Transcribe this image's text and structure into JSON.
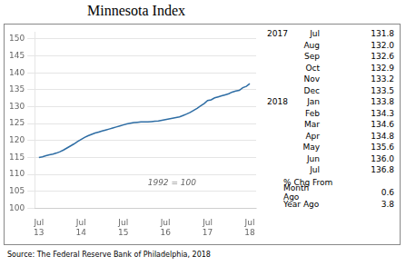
{
  "chart_data": {
    "type": "line",
    "title": "Minnesota Index",
    "subtitle": "1992 = 100",
    "source": "Source: The Federal Reserve Bank of Philadelphia, 2018",
    "color": "#2e6da4",
    "x": [
      2013.5,
      2013.583,
      2013.667,
      2013.75,
      2013.833,
      2013.917,
      2014.0,
      2014.083,
      2014.167,
      2014.25,
      2014.333,
      2014.417,
      2014.5,
      2014.583,
      2014.667,
      2014.75,
      2014.833,
      2014.917,
      2015.0,
      2015.083,
      2015.167,
      2015.25,
      2015.333,
      2015.417,
      2015.5,
      2015.583,
      2015.667,
      2015.75,
      2015.833,
      2015.917,
      2016.0,
      2016.083,
      2016.167,
      2016.25,
      2016.333,
      2016.417,
      2016.5,
      2016.583,
      2016.667,
      2016.75,
      2016.833,
      2016.917,
      2017.0,
      2017.083,
      2017.167,
      2017.25,
      2017.333,
      2017.417,
      2017.5,
      2017.583,
      2017.667,
      2017.75,
      2017.833,
      2017.917,
      2018.0,
      2018.083,
      2018.167,
      2018.25,
      2018.333,
      2018.417,
      2018.5
    ],
    "values": [
      115.0,
      115.2,
      115.5,
      115.8,
      116.0,
      116.3,
      116.7,
      117.2,
      117.8,
      118.4,
      119.0,
      119.7,
      120.3,
      120.9,
      121.4,
      121.8,
      122.2,
      122.5,
      122.8,
      123.1,
      123.4,
      123.7,
      124.0,
      124.3,
      124.6,
      124.9,
      125.1,
      125.3,
      125.4,
      125.5,
      125.5,
      125.5,
      125.6,
      125.7,
      125.8,
      126.0,
      126.2,
      126.4,
      126.6,
      126.8,
      127.0,
      127.4,
      127.8,
      128.3,
      128.9,
      129.5,
      130.2,
      130.9,
      131.8,
      132.0,
      132.6,
      132.9,
      133.2,
      133.5,
      133.8,
      134.3,
      134.6,
      134.8,
      135.6,
      136.0,
      136.8
    ],
    "xlim": [
      2013.4,
      2018.65
    ],
    "xticks": [
      {
        "value": 2013.5,
        "label": "Jul\n13"
      },
      {
        "value": 2014.5,
        "label": "Jul\n14"
      },
      {
        "value": 2015.5,
        "label": "Jul\n15"
      },
      {
        "value": 2016.5,
        "label": "Jul\n16"
      },
      {
        "value": 2017.5,
        "label": "Jul\n17"
      },
      {
        "value": 2018.5,
        "label": "Jul\n18"
      }
    ],
    "ylim": [
      100,
      152
    ],
    "yticks": [
      100,
      105,
      110,
      115,
      120,
      125,
      130,
      135,
      140,
      145,
      150
    ],
    "table": {
      "groups": [
        {
          "label": "2017",
          "rows": [
            [
              "Jul",
              "131.8"
            ],
            [
              "Aug",
              "132.0"
            ],
            [
              "Sep",
              "132.6"
            ],
            [
              "Oct",
              "132.9"
            ],
            [
              "Nov",
              "133.2"
            ],
            [
              "Dec",
              "133.5"
            ]
          ]
        },
        {
          "label": "2018",
          "rows": [
            [
              "Jan",
              "133.8"
            ],
            [
              "Feb",
              "134.3"
            ],
            [
              "Mar",
              "134.6"
            ],
            [
              "Apr",
              "134.8"
            ],
            [
              "May",
              "135.6"
            ],
            [
              "Jun",
              "136.0"
            ],
            [
              "Jul",
              "136.8"
            ]
          ]
        }
      ],
      "pct_chg": {
        "label": "% Chg From",
        "rows": [
          [
            "Month Ago",
            "0.6"
          ],
          [
            "Year Ago",
            "3.8"
          ]
        ]
      }
    }
  }
}
